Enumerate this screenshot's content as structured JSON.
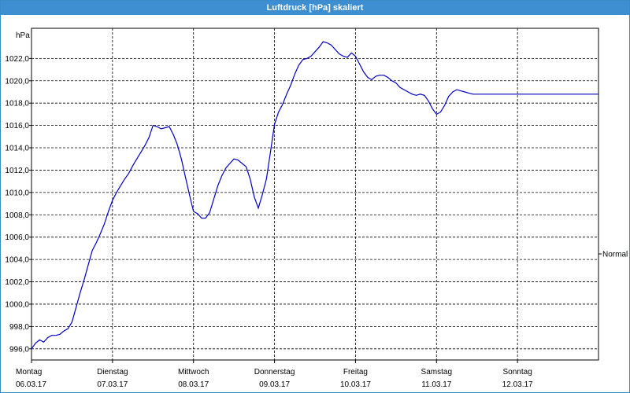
{
  "window": {
    "title": "Luftdruck [hPa] skaliert"
  },
  "chart_data": {
    "type": "line",
    "title": "Luftdruck [hPa] skaliert",
    "ylabel": "hPa",
    "xlabel": "",
    "ylim": [
      995.0,
      1024.7
    ],
    "y_ticks": [
      "996,0",
      "998,0",
      "1000,0",
      "1002,0",
      "1004,0",
      "1006,0",
      "1008,0",
      "1010,0",
      "1012,0",
      "1014,0",
      "1016,0",
      "1018,0",
      "1020,0",
      "1022,0"
    ],
    "y_tick_values": [
      996,
      998,
      1000,
      1002,
      1004,
      1006,
      1008,
      1010,
      1012,
      1014,
      1016,
      1018,
      1020,
      1022
    ],
    "x_range": [
      0,
      7.0
    ],
    "x_ticks": [
      {
        "value": 0,
        "day": "Montag",
        "date": "06.03.17"
      },
      {
        "value": 1,
        "day": "Dienstag",
        "date": "07.03.17"
      },
      {
        "value": 2,
        "day": "Mittwoch",
        "date": "08.03.17"
      },
      {
        "value": 3,
        "day": "Donnerstag",
        "date": "09.03.17"
      },
      {
        "value": 4,
        "day": "Freitag",
        "date": "10.03.17"
      },
      {
        "value": 5,
        "day": "Samstag",
        "date": "11.03.17"
      },
      {
        "value": 6,
        "day": "Sonntag",
        "date": "12.03.17"
      }
    ],
    "reference": {
      "label": "Normal",
      "value": 1004.5
    },
    "grid": true,
    "line_color": "#0000c0",
    "series": [
      {
        "x": [
          0,
          0.05,
          0.1,
          0.15,
          0.2,
          0.25,
          0.3,
          0.35,
          0.4,
          0.45,
          0.5,
          0.55,
          0.6,
          0.65,
          0.7,
          0.75,
          0.8,
          0.85,
          0.9,
          0.95,
          1.0,
          1.05,
          1.1,
          1.15,
          1.2,
          1.25,
          1.3,
          1.35,
          1.4,
          1.45,
          1.5,
          1.55,
          1.6,
          1.65,
          1.7,
          1.75,
          1.8,
          1.85,
          1.9,
          1.95,
          2.0,
          2.05,
          2.1,
          2.15,
          2.2,
          2.25,
          2.3,
          2.35,
          2.4,
          2.45,
          2.5,
          2.55,
          2.6,
          2.65,
          2.7,
          2.75,
          2.8,
          2.85,
          2.9,
          2.95,
          3.0,
          3.05,
          3.1,
          3.15,
          3.2,
          3.25,
          3.3,
          3.35,
          3.4,
          3.45,
          3.5,
          3.55,
          3.6,
          3.65,
          3.7,
          3.75,
          3.8,
          3.85,
          3.9,
          3.95,
          4.0,
          4.05,
          4.1,
          4.15,
          4.2,
          4.25,
          4.3,
          4.35,
          4.4,
          4.45,
          4.5,
          4.55,
          4.6,
          4.65,
          4.7,
          4.75,
          4.8,
          4.85,
          4.9,
          4.95,
          5.0,
          5.05,
          5.1,
          5.15,
          5.2,
          5.25,
          5.3,
          5.35,
          5.4,
          5.45,
          5.5,
          5.55,
          5.6,
          5.65,
          5.7,
          5.75,
          5.8,
          5.85,
          5.9,
          5.95,
          6.0,
          6.05,
          6.1,
          6.15,
          6.2,
          6.25,
          6.3,
          6.35,
          6.4,
          6.45,
          6.5,
          6.55,
          6.6,
          6.65,
          6.7,
          6.75,
          6.8,
          6.85,
          6.9,
          6.95,
          7.0
        ],
        "values": [
          996.0,
          996.5,
          996.8,
          996.6,
          997.0,
          997.2,
          997.2,
          997.3,
          997.6,
          997.8,
          998.4,
          999.7,
          1001.0,
          1002.2,
          1003.5,
          1004.8,
          1005.5,
          1006.3,
          1007.2,
          1008.3,
          1009.3,
          1010.0,
          1010.6,
          1011.2,
          1011.7,
          1012.4,
          1013.0,
          1013.6,
          1014.2,
          1014.9,
          1016.0,
          1015.9,
          1015.7,
          1015.8,
          1015.9,
          1015.2,
          1014.3,
          1013.0,
          1011.4,
          1009.8,
          1008.3,
          1008.1,
          1007.7,
          1007.7,
          1008.2,
          1009.4,
          1010.6,
          1011.5,
          1012.2,
          1012.6,
          1013.0,
          1012.9,
          1012.6,
          1012.3,
          1011.2,
          1009.6,
          1008.6,
          1009.8,
          1011.2,
          1013.6,
          1016.1,
          1017.2,
          1017.9,
          1018.8,
          1019.6,
          1020.6,
          1021.4,
          1021.9,
          1022.0,
          1022.2,
          1022.6,
          1023.0,
          1023.5,
          1023.4,
          1023.2,
          1022.8,
          1022.4,
          1022.2,
          1022.1,
          1022.5,
          1022.2,
          1021.5,
          1020.8,
          1020.3,
          1020.1,
          1020.4,
          1020.5,
          1020.5,
          1020.3,
          1020.0,
          1019.8,
          1019.4,
          1019.2,
          1019.0,
          1018.8,
          1018.7,
          1018.8,
          1018.7,
          1018.2,
          1017.5,
          1017.0,
          1017.2,
          1017.8,
          1018.6,
          1019.0,
          1019.2,
          1019.1,
          1019.0,
          1018.9,
          1018.8,
          1018.8,
          1018.8,
          1018.8,
          1018.8,
          1018.8,
          1018.8,
          1018.8,
          1018.8,
          1018.8,
          1018.8,
          1018.8,
          1018.8,
          1018.8,
          1018.8,
          1018.8,
          1018.8,
          1018.8,
          1018.8,
          1018.8,
          1018.8,
          1018.8,
          1018.8,
          1018.8,
          1018.8,
          1018.8,
          1018.8,
          1018.8,
          1018.8,
          1018.8,
          1018.8,
          1018.8
        ]
      }
    ]
  }
}
